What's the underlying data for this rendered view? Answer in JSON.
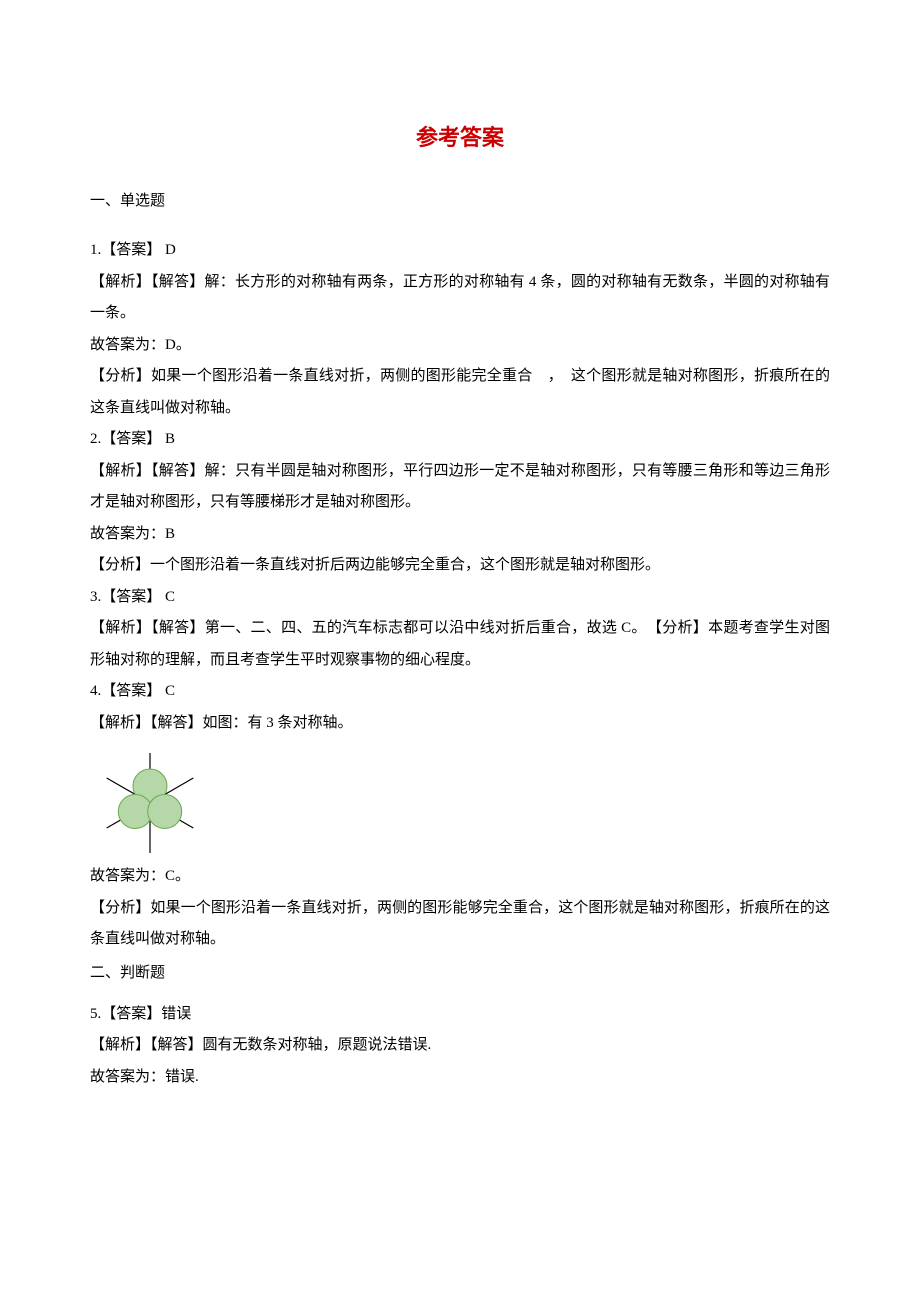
{
  "title": "参考答案",
  "section1": {
    "heading": "一、单选题"
  },
  "q1": {
    "answer_line": "1.【答案】 D",
    "p1": "【解析】【解答】解：长方形的对称轴有两条，正方形的对称轴有 4 条，圆的对称轴有无数条，半圆的对称轴有一条。",
    "p2": "故答案为：D。",
    "p3": "【分析】如果一个图形沿着一条直线对折，两侧的图形能完全重合　，　这个图形就是轴对称图形，折痕所在的这条直线叫做对称轴。"
  },
  "q2": {
    "answer_line": "2.【答案】 B",
    "p1": "【解析】【解答】解：只有半圆是轴对称图形，平行四边形一定不是轴对称图形，只有等腰三角形和等边三角形才是轴对称图形，只有等腰梯形才是轴对称图形。",
    "p2": "故答案为：B",
    "p3": "【分析】一个图形沿着一条直线对折后两边能够完全重合，这个图形就是轴对称图形。"
  },
  "q3": {
    "answer_line": "3.【答案】 C",
    "p1": "【解析】【解答】第一、二、四、五的汽车标志都可以沿中线对折后重合，故选 C。　【分析】本题考查学生对图形轴对称的理解，而且考查学生平时观察事物的细心程度。"
  },
  "q4": {
    "answer_line": "4.【答案】 C",
    "p1": "【解析】【解答】如图：有 3 条对称轴。",
    "p2": "故答案为：C。",
    "p3": "【分析】如果一个图形沿着一条直线对折，两侧的图形能够完全重合，这个图形就是轴对称图形，折痕所在的这条直线叫做对称轴。",
    "figure": {
      "leaf_fill": "#b6d7a8",
      "leaf_stroke": "#6aa84f",
      "axis_color": "#000000",
      "width": 120,
      "height": 110
    }
  },
  "section2": {
    "heading": "二、判断题"
  },
  "q5": {
    "answer_line": "5.【答案】错误",
    "p1": "【解析】【解答】圆有无数条对称轴，原题说法错误.",
    "p2": "故答案为：错误."
  }
}
